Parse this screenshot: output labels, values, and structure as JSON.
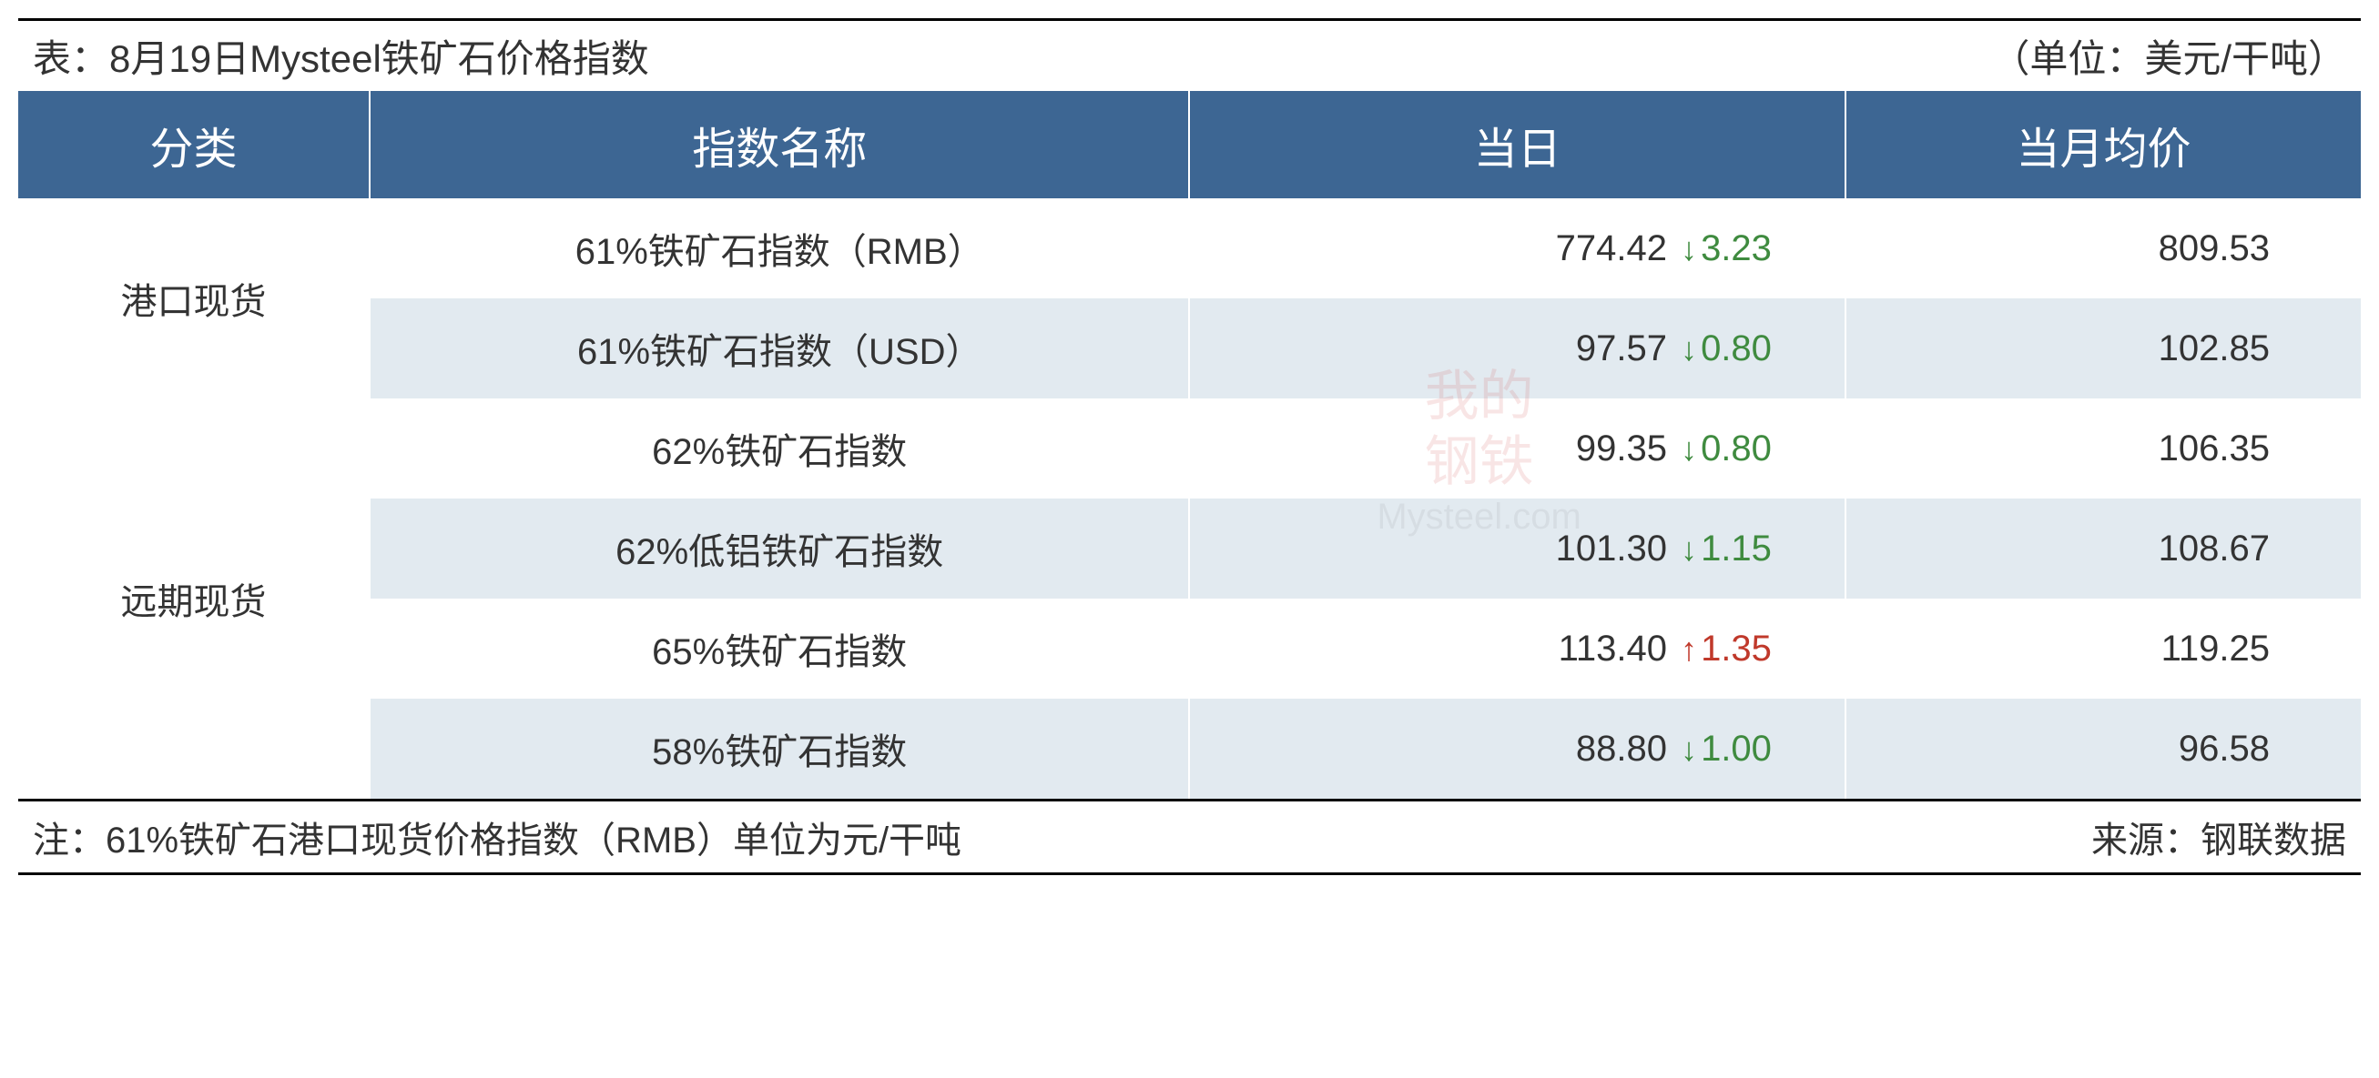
{
  "title": {
    "left": "表：8月19日Mysteel铁矿石价格指数",
    "right": "（单位：美元/干吨）"
  },
  "columns": {
    "category": "分类",
    "name": "指数名称",
    "today": "当日",
    "month_avg": "当月均价"
  },
  "groups": [
    {
      "category": "港口现货",
      "rows": [
        {
          "name": "61%铁矿石指数（RMB）",
          "today_value": "774.42",
          "change_dir": "down",
          "change_value": "3.23",
          "month_avg": "809.53",
          "alt": false
        },
        {
          "name": "61%铁矿石指数（USD）",
          "today_value": "97.57",
          "change_dir": "down",
          "change_value": "0.80",
          "month_avg": "102.85",
          "alt": true
        }
      ]
    },
    {
      "category": "远期现货",
      "rows": [
        {
          "name": "62%铁矿石指数",
          "today_value": "99.35",
          "change_dir": "down",
          "change_value": "0.80",
          "month_avg": "106.35",
          "alt": false
        },
        {
          "name": "62%低铝铁矿石指数",
          "today_value": "101.30",
          "change_dir": "down",
          "change_value": "1.15",
          "month_avg": "108.67",
          "alt": true
        },
        {
          "name": "65%铁矿石指数",
          "today_value": "113.40",
          "change_dir": "up",
          "change_value": "1.35",
          "month_avg": "119.25",
          "alt": false
        },
        {
          "name": "58%铁矿石指数",
          "today_value": "88.80",
          "change_dir": "down",
          "change_value": "1.00",
          "month_avg": "96.58",
          "alt": true
        }
      ]
    }
  ],
  "footer": {
    "note": "注：61%铁矿石港口现货价格指数（RMB）单位为元/干吨",
    "source": "来源：钢联数据"
  },
  "watermark": {
    "line1": "我的",
    "line2": "钢铁",
    "line3": "Mysteel.com"
  },
  "styling": {
    "header_bg": "#3d6693",
    "header_text": "#ffffff",
    "row_bg": "#ffffff",
    "alt_row_bg": "#e2eaf0",
    "text_color": "#333333",
    "down_color": "#3f8b3f",
    "up_color": "#c0392b",
    "border_color": "#000000",
    "title_fontsize": 42,
    "header_fontsize": 48,
    "cell_fontsize": 40,
    "col_widths_pct": [
      15,
      35,
      28,
      22
    ]
  }
}
